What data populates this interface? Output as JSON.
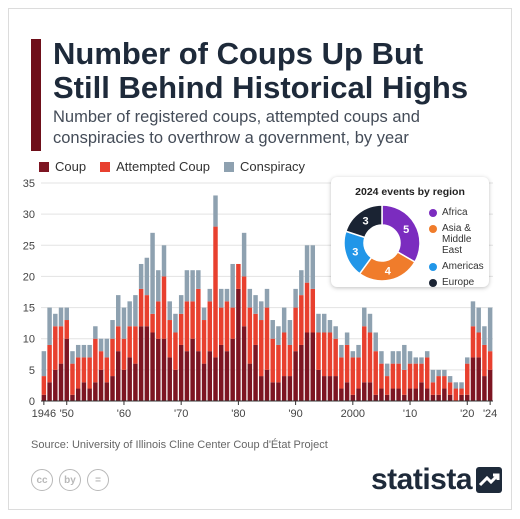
{
  "title": "Number of Coups Up But Still Behind Historical Highs",
  "subtitle": "Number of registered coups, attempted coups and conspiracies to overthrow a government, by year",
  "source": "Source: University of Illinois Cline Center Coup d'État Project",
  "brand": "statista",
  "cc_icons": [
    "cc",
    "by",
    "="
  ],
  "colors": {
    "accent": "#6e0f1a",
    "coup": "#7d1522",
    "attempted": "#e8402f",
    "conspiracy": "#8ea1b0",
    "title": "#1e2a3a"
  },
  "legend": [
    {
      "label": "Coup",
      "color": "#7d1522"
    },
    {
      "label": "Attempted Coup",
      "color": "#e8402f"
    },
    {
      "label": "Conspiracy",
      "color": "#8ea1b0"
    }
  ],
  "chart_data": [
    {
      "type": "bar",
      "stacked": true,
      "x_start": 1946,
      "x_end": 2024,
      "xticks": [
        "1946",
        "'50",
        "'60",
        "'70",
        "'80",
        "'90",
        "2000",
        "'10",
        "'20",
        "'24"
      ],
      "xtick_years": [
        1946,
        1950,
        1960,
        1970,
        1980,
        1990,
        2000,
        2010,
        2020,
        2024
      ],
      "ylim": [
        0,
        35
      ],
      "yticks": [
        0,
        5,
        10,
        15,
        20,
        25,
        30,
        35
      ],
      "grid": true,
      "series": [
        {
          "name": "Coup",
          "color": "#7d1522",
          "values": [
            1,
            3,
            5,
            6,
            10,
            1,
            2,
            3,
            2,
            3,
            5,
            3,
            4,
            8,
            5,
            7,
            6,
            12,
            12,
            11,
            10,
            10,
            7,
            5,
            9,
            8,
            10,
            8,
            6,
            8,
            7,
            9,
            8,
            10,
            18,
            12,
            6,
            9,
            4,
            5,
            3,
            3,
            4,
            4,
            8,
            9,
            11,
            11,
            5,
            4,
            4,
            4,
            2,
            3,
            1,
            2,
            3,
            3,
            1,
            2,
            1,
            2,
            2,
            1,
            2,
            2,
            3,
            2,
            1,
            1,
            2,
            1,
            0,
            1,
            1,
            7,
            7,
            4,
            5
          ]
        },
        {
          "name": "Attempted Coup",
          "color": "#e8402f",
          "values": [
            3,
            6,
            7,
            6,
            3,
            5,
            5,
            4,
            5,
            7,
            3,
            4,
            6,
            4,
            5,
            5,
            6,
            6,
            5,
            3,
            6,
            10,
            6,
            6,
            5,
            8,
            6,
            10,
            7,
            8,
            21,
            6,
            8,
            5,
            4,
            8,
            9,
            5,
            9,
            10,
            7,
            6,
            7,
            5,
            7,
            8,
            8,
            7,
            6,
            7,
            7,
            6,
            5,
            6,
            6,
            5,
            9,
            8,
            7,
            4,
            3,
            4,
            4,
            4,
            4,
            4,
            3,
            5,
            2,
            3,
            2,
            2,
            2,
            1,
            5,
            5,
            4,
            5,
            3
          ]
        },
        {
          "name": "Conspiracy",
          "color": "#8ea1b0",
          "values": [
            4,
            6,
            2,
            3,
            2,
            2,
            2,
            2,
            2,
            2,
            2,
            3,
            3,
            5,
            5,
            4,
            5,
            4,
            6,
            13,
            5,
            5,
            3,
            3,
            3,
            5,
            5,
            3,
            2,
            2,
            5,
            3,
            2,
            7,
            0,
            7,
            3,
            3,
            3,
            3,
            3,
            3,
            4,
            4,
            3,
            4,
            6,
            7,
            3,
            3,
            2,
            2,
            2,
            2,
            1,
            2,
            3,
            3,
            3,
            2,
            2,
            2,
            2,
            4,
            2,
            1,
            1,
            1,
            2,
            1,
            1,
            1,
            1,
            1,
            1,
            4,
            4,
            3,
            7
          ]
        }
      ]
    },
    {
      "type": "pie",
      "title": "2024 events by region",
      "donut": true,
      "categories": [
        "Africa",
        "Asia & Middle East",
        "Americas",
        "Europe"
      ],
      "values": [
        5,
        4,
        3,
        3
      ],
      "colors": [
        "#7b2cbf",
        "#f07c2b",
        "#2196e8",
        "#1a2333"
      ]
    }
  ]
}
